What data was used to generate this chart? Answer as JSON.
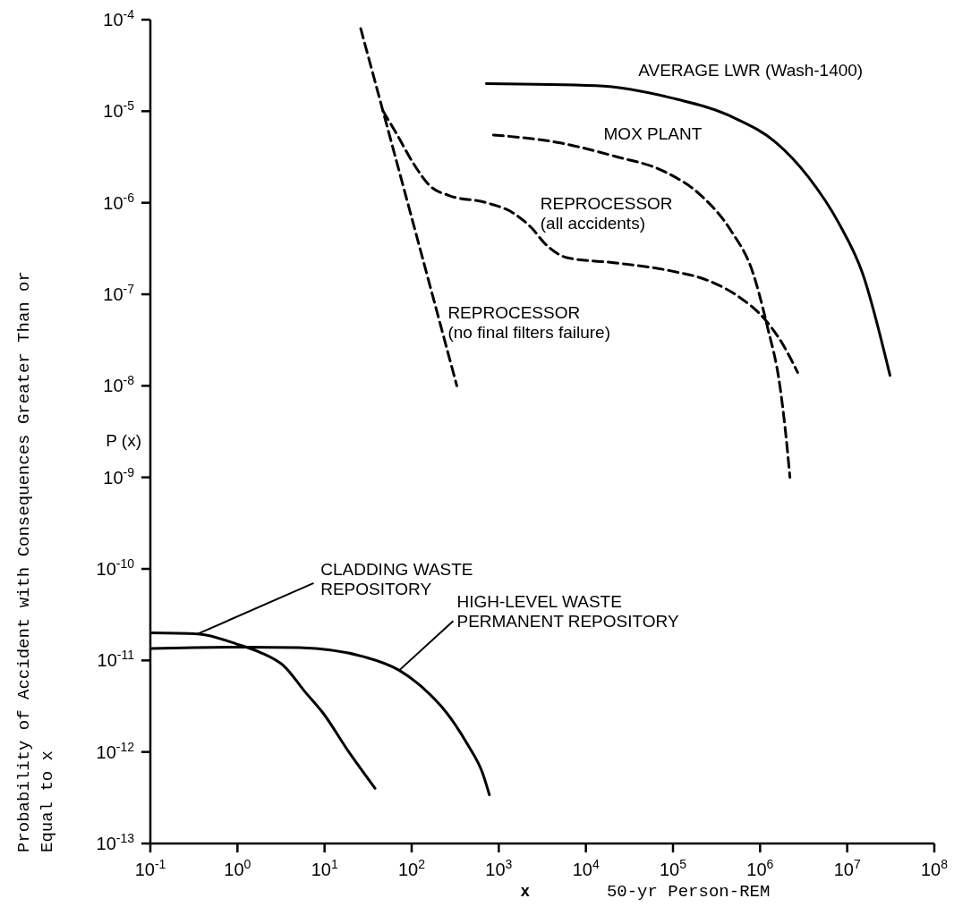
{
  "chart_data": {
    "type": "line",
    "log": "xy",
    "ylabel": "Probability of Accident with Consequences Greater Than or\nEqual to x",
    "xlabel": "50-yr Person-REM",
    "annotations": [
      "P (x)",
      "x"
    ],
    "xlim": [
      0.1,
      100000000
    ],
    "ylim": [
      1e-13,
      0.0001
    ],
    "xticks": [
      {
        "value": 0.1,
        "label": "10$^{-1}$"
      },
      {
        "value": 1,
        "label": "10$^{0}$"
      },
      {
        "value": 10,
        "label": "10$^{1}$"
      },
      {
        "value": 100,
        "label": "10$^{2}$"
      },
      {
        "value": 1000,
        "label": "10$^{3}$"
      },
      {
        "value": 10000,
        "label": "10$^{4}$"
      },
      {
        "value": 100000,
        "label": "10$^{5}$"
      },
      {
        "value": 1000000,
        "label": "10$^{6}$"
      },
      {
        "value": 10000000,
        "label": "10$^{7}$"
      },
      {
        "value": 100000000,
        "label": "10$^{8}$"
      }
    ],
    "yticks": [
      {
        "value": 1e-13,
        "label": "10$^{-13}$"
      },
      {
        "value": 1e-12,
        "label": "10$^{-12}$"
      },
      {
        "value": 1e-11,
        "label": "10$^{-11}$"
      },
      {
        "value": 1e-10,
        "label": "10$^{-10}$"
      },
      {
        "value": 1e-09,
        "label": "10$^{-9}$"
      },
      {
        "value": 1e-08,
        "label": "10$^{-8}$"
      },
      {
        "value": 1e-07,
        "label": "10$^{-7}$"
      },
      {
        "value": 1e-06,
        "label": "10$^{-6}$"
      },
      {
        "value": 1e-05,
        "label": "10$^{-5}$"
      },
      {
        "value": 0.0001,
        "label": "10$^{-4}$"
      }
    ],
    "series": [
      {
        "name": "AVERAGE LWR (Wash-1400)",
        "color": "#000000",
        "line_style": "solid",
        "x": [
          720,
          13000,
          95000,
          500000,
          1500000,
          3600000,
          8000000,
          15000000,
          31000000
        ],
        "values": [
          2e-05,
          1.9e-05,
          1.4e-05,
          8.5e-06,
          4.6e-06,
          1.9e-06,
          6e-07,
          1.7e-07,
          1.3e-08
        ]
      },
      {
        "name": "MOX PLANT",
        "color": "#000000",
        "line_style": "dashed",
        "x": [
          870,
          5100,
          22000,
          79000,
          210000,
          460000,
          830000,
          1200000,
          1700000,
          2000000,
          2200000
        ],
        "values": [
          5.5e-06,
          4.5e-06,
          3.2e-06,
          2.2e-06,
          1.2e-06,
          5e-07,
          1.7e-07,
          4.6e-08,
          9.5e-09,
          2.6e-09,
          1e-09
        ]
      },
      {
        "name": "REPROCESSOR\n(all accidents)",
        "color": "#000000",
        "line_style": "dashed",
        "x": [
          47,
          69,
          102,
          166,
          269,
          724,
          1440,
          2340,
          3470,
          6170,
          22000,
          95000,
          260000,
          560000,
          1100000,
          1800000,
          2700000
        ],
        "values": [
          1e-05,
          5.4e-06,
          2.8e-06,
          1.5e-06,
          1.2e-06,
          1e-06,
          7.8e-07,
          5.4e-07,
          3.5e-07,
          2.5e-07,
          2.2e-07,
          1.8e-07,
          1.4e-07,
          9.5e-08,
          5.5e-08,
          2.9e-08,
          1.4e-08
        ]
      },
      {
        "name": "REPROCESSOR\n(no final filters failure)",
        "color": "#000000",
        "line_style": "dashed",
        "x": [
          26,
          98,
          330
        ],
        "values": [
          8e-05,
          7.4e-07,
          1e-08
        ]
      },
      {
        "name": "CLADDING WASTE\nREPOSITORY",
        "color": "#000000",
        "line_style": "solid",
        "x": [
          0.1,
          0.35,
          1,
          1.8,
          3.5,
          5.9,
          9.5,
          19,
          38
        ],
        "values": [
          2e-11,
          1.95e-11,
          1.5e-11,
          1.23e-11,
          8.5e-12,
          4.6e-12,
          2.7e-12,
          1e-12,
          4e-13
        ]
      },
      {
        "name": "HIGH-LEVEL WASTE\nPERMANENT REPOSITORY",
        "color": "#000000",
        "line_style": "solid",
        "x": [
          0.1,
          1.2,
          5.1,
          28,
          72,
          135,
          250,
          440,
          650,
          780
        ],
        "values": [
          1.35e-11,
          1.4e-11,
          1.38e-11,
          1.1e-11,
          7.8e-12,
          5e-12,
          2.7e-12,
          1.2e-12,
          5.9e-13,
          3.4e-13
        ]
      }
    ]
  }
}
